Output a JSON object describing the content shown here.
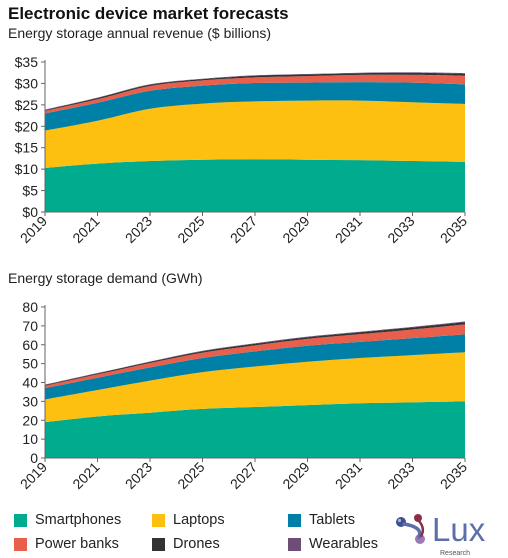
{
  "title": "Electronic device market forecasts",
  "chart_data": [
    {
      "type": "area",
      "stacked": true,
      "title": "Energy storage annual revenue ($ billions)",
      "x": [
        2019,
        2021,
        2023,
        2025,
        2027,
        2029,
        2031,
        2033,
        2035
      ],
      "xticks": [
        "2019",
        "2021",
        "2023",
        "2025",
        "2027",
        "2029",
        "2031",
        "2033",
        "2035"
      ],
      "yticks": [
        "$0",
        "$5",
        "$10",
        "$15",
        "$20",
        "$25",
        "$30",
        "$35"
      ],
      "ylim": [
        0,
        35
      ],
      "grid": false,
      "series": [
        {
          "name": "Smartphones",
          "color": "#00ab8e",
          "values": [
            10.3,
            11.3,
            11.9,
            12.2,
            12.3,
            12.2,
            12.1,
            11.9,
            11.7
          ]
        },
        {
          "name": "Laptops",
          "color": "#fdc010",
          "values": [
            8.7,
            10.0,
            12.2,
            13.1,
            13.5,
            13.8,
            13.9,
            13.7,
            13.5
          ]
        },
        {
          "name": "Tablets",
          "color": "#0080a6",
          "values": [
            4.0,
            4.2,
            4.2,
            4.2,
            4.3,
            4.2,
            4.3,
            4.6,
            4.6
          ]
        },
        {
          "name": "Power banks",
          "color": "#e85f4c",
          "values": [
            0.6,
            0.8,
            1.1,
            1.2,
            1.3,
            1.5,
            1.7,
            1.8,
            2.0
          ]
        },
        {
          "name": "Drones",
          "color": "#333333",
          "values": [
            0.2,
            0.3,
            0.3,
            0.3,
            0.4,
            0.4,
            0.4,
            0.5,
            0.5
          ]
        },
        {
          "name": "Wearables",
          "color": "#6c4e77",
          "values": [
            0.1,
            0.1,
            0.1,
            0.1,
            0.1,
            0.1,
            0.1,
            0.1,
            0.1
          ]
        }
      ]
    },
    {
      "type": "area",
      "stacked": true,
      "title": "Energy storage demand (GWh)",
      "x": [
        2019,
        2021,
        2023,
        2025,
        2027,
        2029,
        2031,
        2033,
        2035
      ],
      "xticks": [
        "2019",
        "2021",
        "2023",
        "2025",
        "2027",
        "2029",
        "2031",
        "2033",
        "2035"
      ],
      "yticks": [
        "0",
        "10",
        "20",
        "30",
        "40",
        "50",
        "60",
        "70",
        "80"
      ],
      "ylim": [
        0,
        80
      ],
      "grid": false,
      "series": [
        {
          "name": "Smartphones",
          "color": "#00ab8e",
          "values": [
            19,
            22,
            24,
            26,
            27,
            28,
            29,
            29.5,
            30
          ]
        },
        {
          "name": "Laptops",
          "color": "#fdc010",
          "values": [
            12,
            14,
            17,
            19.5,
            21.5,
            23,
            24,
            25,
            26
          ]
        },
        {
          "name": "Tablets",
          "color": "#0080a6",
          "values": [
            6,
            6.5,
            7,
            7.5,
            8,
            8.5,
            8.5,
            9,
            9.5
          ]
        },
        {
          "name": "Power banks",
          "color": "#e85f4c",
          "values": [
            1.3,
            1.8,
            2.3,
            2.8,
            3.2,
            3.6,
            4.1,
            4.6,
            5.3
          ]
        },
        {
          "name": "Drones",
          "color": "#333333",
          "values": [
            0.4,
            0.5,
            0.6,
            0.7,
            0.8,
            0.9,
            1.0,
            1.1,
            1.2
          ]
        },
        {
          "name": "Wearables",
          "color": "#6c4e77",
          "values": [
            0.2,
            0.2,
            0.2,
            0.3,
            0.3,
            0.3,
            0.3,
            0.3,
            0.3
          ]
        }
      ]
    }
  ],
  "legend": [
    {
      "name": "Smartphones",
      "color": "#00ab8e"
    },
    {
      "name": "Laptops",
      "color": "#fdc010"
    },
    {
      "name": "Tablets",
      "color": "#0080a6"
    },
    {
      "name": "Power banks",
      "color": "#e85f4c"
    },
    {
      "name": "Drones",
      "color": "#333333"
    },
    {
      "name": "Wearables",
      "color": "#6c4e77"
    }
  ],
  "logo": {
    "text": "Lux",
    "subtext": "Research",
    "color": "#5b6fa8",
    "dot_colors": [
      "#3c4f8f",
      "#8a2f4b",
      "#9b7ab4"
    ]
  }
}
